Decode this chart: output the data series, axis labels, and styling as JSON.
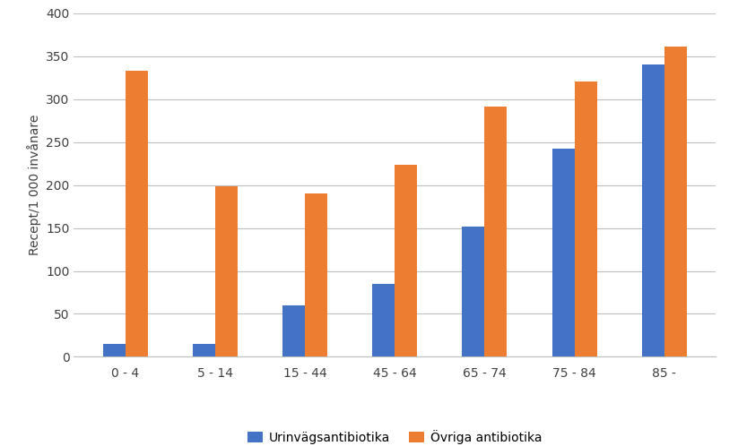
{
  "categories": [
    "0 - 4",
    "5 - 14",
    "15 - 44",
    "45 - 64",
    "65 - 74",
    "75 - 84",
    "85 -"
  ],
  "urinvagsantibiotika": [
    15,
    15,
    60,
    85,
    152,
    242,
    340
  ],
  "ovriga_antibiotika": [
    333,
    199,
    190,
    224,
    291,
    321,
    361
  ],
  "color_urin": "#4472C4",
  "color_ovriga": "#ED7D31",
  "ylabel": "Recept/1 000 invånare",
  "ylim": [
    0,
    400
  ],
  "yticks": [
    0,
    50,
    100,
    150,
    200,
    250,
    300,
    350,
    400
  ],
  "legend_urin": "Urinvägsantibiotika",
  "legend_ovriga": "Övriga antibiotika",
  "bar_width": 0.25,
  "background_color": "#ffffff",
  "grid_color": "#bfbfbf"
}
